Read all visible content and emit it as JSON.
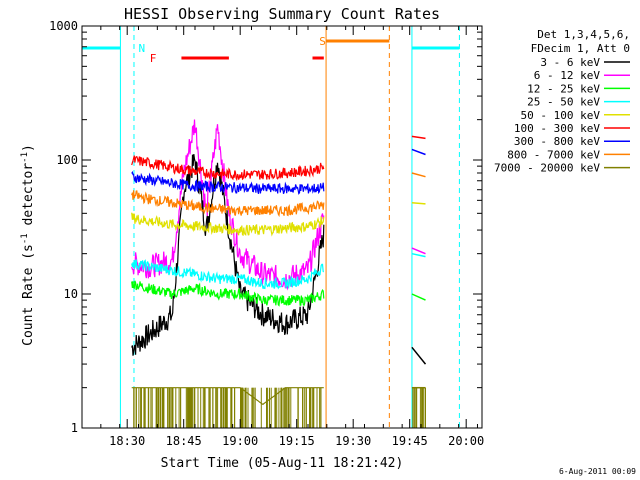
{
  "chart_data": {
    "type": "line",
    "title": "HESSI Observing Summary Count Rates",
    "xlabel": "Start Time (05-Aug-11 18:21:42)",
    "ylabel": "Count Rate (s",
    "ylabel_sup": "-1",
    "ylabel_mid": " detector",
    "ylabel_end": ")",
    "yscale": "log",
    "ylim": [
      1,
      1000
    ],
    "xlim_minutes": [
      18.3,
      20.07
    ],
    "y_ticks": [
      {
        "value": 1,
        "label": "1"
      },
      {
        "value": 10,
        "label": "10"
      },
      {
        "value": 100,
        "label": "100"
      },
      {
        "value": 1000,
        "label": "1000"
      }
    ],
    "x_ticks": [
      {
        "value": 18.5,
        "label": "18:30"
      },
      {
        "value": 18.75,
        "label": "18:45"
      },
      {
        "value": 19.0,
        "label": "19:00"
      },
      {
        "value": 19.25,
        "label": "19:15"
      },
      {
        "value": 19.5,
        "label": "19:30"
      },
      {
        "value": 19.75,
        "label": "19:45"
      },
      {
        "value": 20.0,
        "label": "20:00"
      }
    ],
    "legend_header": [
      "Det 1,3,4,5,6,",
      "FDecim 1, Att 0"
    ],
    "legend_placement": "right",
    "series": [
      {
        "name": "3 - 6 keV",
        "color": "#000000",
        "x": [
          18.52,
          18.6,
          18.7,
          18.75,
          18.8,
          18.85,
          18.9,
          18.95,
          19.0,
          19.1,
          19.2,
          19.3,
          19.37
        ],
        "values": [
          4,
          5,
          7,
          60,
          100,
          30,
          100,
          30,
          10,
          7,
          6,
          7,
          28
        ]
      },
      {
        "name": "6 - 12 keV",
        "color": "#ff00ff",
        "x": [
          18.52,
          18.6,
          18.7,
          18.75,
          18.8,
          18.85,
          18.9,
          18.95,
          19.0,
          19.1,
          19.2,
          19.3,
          19.37
        ],
        "values": [
          17,
          16,
          18,
          80,
          190,
          40,
          180,
          40,
          20,
          14,
          13,
          15,
          38
        ]
      },
      {
        "name": "12 - 25 keV",
        "color": "#00ff00",
        "x": [
          18.52,
          18.6,
          18.7,
          18.8,
          18.9,
          19.0,
          19.1,
          19.2,
          19.3,
          19.37
        ],
        "values": [
          12,
          11,
          10,
          11,
          10,
          10,
          9,
          9,
          9,
          10
        ]
      },
      {
        "name": "25 - 50 keV",
        "color": "#00ffff",
        "x": [
          18.52,
          18.6,
          18.7,
          18.8,
          18.9,
          19.0,
          19.1,
          19.2,
          19.3,
          19.37
        ],
        "values": [
          17,
          16,
          15,
          14,
          13,
          13,
          12,
          12,
          13,
          16
        ]
      },
      {
        "name": "50 - 100 keV",
        "color": "#e0e000",
        "x": [
          18.52,
          18.6,
          18.7,
          18.8,
          18.9,
          19.0,
          19.1,
          19.2,
          19.3,
          19.37
        ],
        "values": [
          37,
          35,
          33,
          32,
          31,
          30,
          30,
          31,
          32,
          35
        ]
      },
      {
        "name": "100 - 300 keV",
        "color": "#ff0000",
        "x": [
          18.52,
          18.6,
          18.7,
          18.8,
          18.9,
          19.0,
          19.1,
          19.2,
          19.3,
          19.37
        ],
        "values": [
          100,
          95,
          88,
          82,
          79,
          78,
          78,
          80,
          83,
          88
        ]
      },
      {
        "name": "300 - 800 keV",
        "color": "#0000ff",
        "x": [
          18.52,
          18.6,
          18.7,
          18.8,
          18.9,
          19.0,
          19.1,
          19.2,
          19.3,
          19.37
        ],
        "values": [
          75,
          71,
          67,
          64,
          63,
          62,
          61,
          61,
          61,
          62
        ]
      },
      {
        "name": "800 - 7000 keV",
        "color": "#ff8000",
        "x": [
          18.52,
          18.6,
          18.7,
          18.8,
          18.9,
          19.0,
          19.1,
          19.2,
          19.3,
          19.37
        ],
        "values": [
          55,
          51,
          48,
          45,
          43,
          42,
          42,
          42,
          44,
          46
        ]
      },
      {
        "name": "7000 - 20000 keV",
        "color": "#808000",
        "x": [
          18.52,
          18.6,
          18.7,
          18.8,
          18.9,
          19.0,
          19.1,
          19.2,
          19.3,
          19.37
        ],
        "values": [
          2,
          2,
          2,
          2,
          2,
          2,
          1.5,
          2,
          2,
          2
        ]
      }
    ],
    "post_gap_series": [
      {
        "color": "#ff0000",
        "x": [
          19.76,
          19.82
        ],
        "values": [
          150,
          145
        ]
      },
      {
        "color": "#0000ff",
        "x": [
          19.76,
          19.82
        ],
        "values": [
          120,
          110
        ]
      },
      {
        "color": "#ff8000",
        "x": [
          19.76,
          19.82
        ],
        "values": [
          80,
          75
        ]
      },
      {
        "color": "#e0e000",
        "x": [
          19.76,
          19.82
        ],
        "values": [
          48,
          47
        ]
      },
      {
        "color": "#ff00ff",
        "x": [
          19.76,
          19.82
        ],
        "values": [
          22,
          20
        ]
      },
      {
        "color": "#00ffff",
        "x": [
          19.76,
          19.82
        ],
        "values": [
          20,
          19
        ]
      },
      {
        "color": "#00ff00",
        "x": [
          19.76,
          19.82
        ],
        "values": [
          10,
          9
        ]
      },
      {
        "color": "#000000",
        "x": [
          19.76,
          19.82
        ],
        "values": [
          4,
          3
        ]
      },
      {
        "color": "#808000",
        "x": [
          19.76,
          19.82
        ],
        "values": [
          2,
          2
        ]
      }
    ],
    "annotations": [
      {
        "label": "N",
        "color": "#00ffff"
      },
      {
        "label": "F",
        "color": "#ff0000"
      },
      {
        "label": "S",
        "color": "#ff8000"
      }
    ],
    "footer_date": "6-Aug-2011 00:09"
  }
}
